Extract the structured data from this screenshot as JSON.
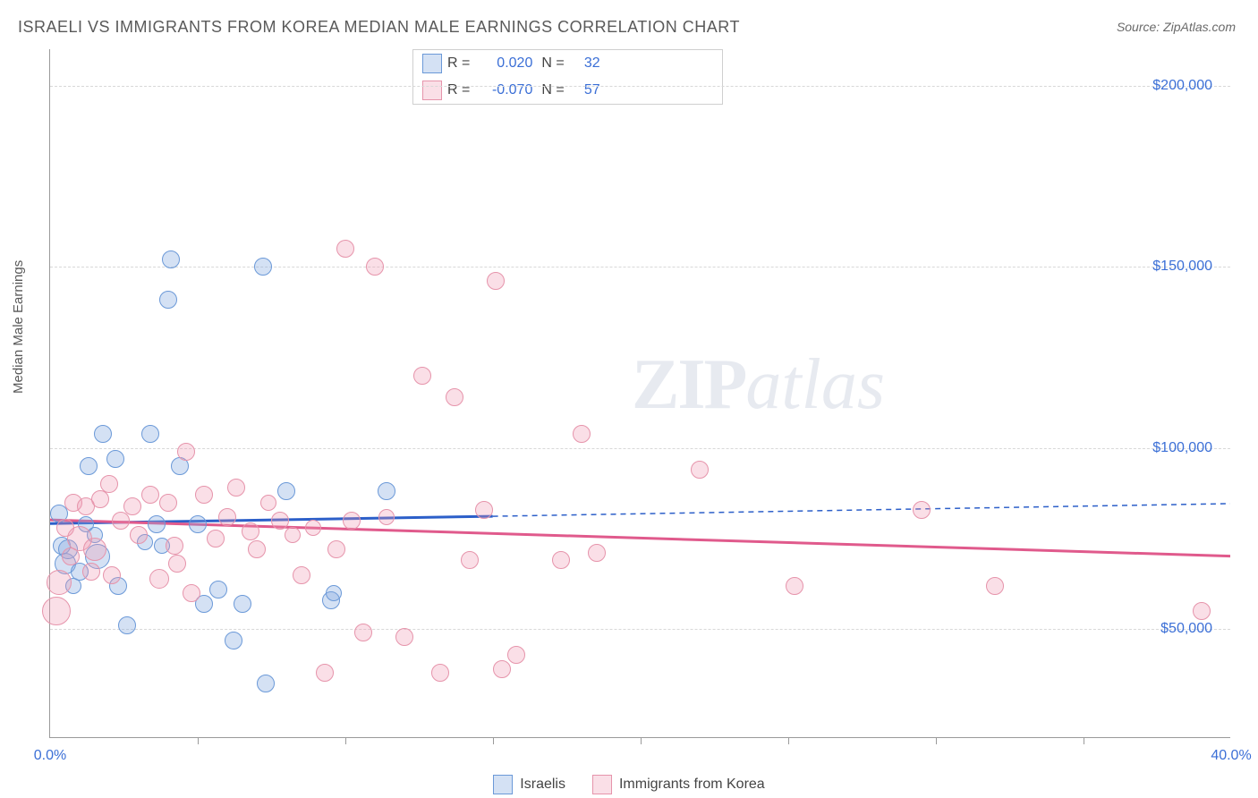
{
  "title": "ISRAELI VS IMMIGRANTS FROM KOREA MEDIAN MALE EARNINGS CORRELATION CHART",
  "source": "Source: ZipAtlas.com",
  "y_axis_label": "Median Male Earnings",
  "watermark_a": "ZIP",
  "watermark_b": "atlas",
  "chart": {
    "type": "scatter",
    "xlim": [
      0,
      40
    ],
    "ylim": [
      20000,
      210000
    ],
    "x_ticks_minor": [
      5,
      10,
      15,
      20,
      25,
      30,
      35
    ],
    "x_tick_labels": [
      {
        "x": 0,
        "label": "0.0%"
      },
      {
        "x": 40,
        "label": "40.0%"
      }
    ],
    "y_grid": [
      {
        "y": 50000,
        "label": "$50,000"
      },
      {
        "y": 100000,
        "label": "$100,000"
      },
      {
        "y": 150000,
        "label": "$150,000"
      },
      {
        "y": 200000,
        "label": "$200,000"
      }
    ],
    "background_color": "#ffffff",
    "grid_color": "#d8d8d8",
    "axis_color": "#9a9a9a",
    "tick_label_color": "#3b6fd6"
  },
  "series": [
    {
      "key": "israelis",
      "label": "Israelis",
      "fill": "rgba(132,170,224,0.35)",
      "stroke": "#6b99d8",
      "trend_color": "#2c5fc9",
      "R": "0.020",
      "N": "32",
      "trend": {
        "x1": 0,
        "y1": 79000,
        "x2_solid": 15,
        "y2_solid": 81000,
        "x2": 40,
        "y2": 84500
      },
      "points": [
        {
          "x": 0.3,
          "y": 82000,
          "r": 10
        },
        {
          "x": 0.4,
          "y": 73000,
          "r": 10
        },
        {
          "x": 0.5,
          "y": 68000,
          "r": 12
        },
        {
          "x": 0.6,
          "y": 72000,
          "r": 11
        },
        {
          "x": 0.8,
          "y": 62000,
          "r": 9
        },
        {
          "x": 1.0,
          "y": 66000,
          "r": 10
        },
        {
          "x": 1.2,
          "y": 79000,
          "r": 9
        },
        {
          "x": 1.3,
          "y": 95000,
          "r": 10
        },
        {
          "x": 1.5,
          "y": 76000,
          "r": 9
        },
        {
          "x": 1.6,
          "y": 70000,
          "r": 14
        },
        {
          "x": 1.8,
          "y": 104000,
          "r": 10
        },
        {
          "x": 2.2,
          "y": 97000,
          "r": 10
        },
        {
          "x": 2.3,
          "y": 62000,
          "r": 10
        },
        {
          "x": 2.6,
          "y": 51000,
          "r": 10
        },
        {
          "x": 3.2,
          "y": 74000,
          "r": 9
        },
        {
          "x": 3.4,
          "y": 104000,
          "r": 10
        },
        {
          "x": 3.6,
          "y": 79000,
          "r": 10
        },
        {
          "x": 3.8,
          "y": 73000,
          "r": 9
        },
        {
          "x": 4.0,
          "y": 141000,
          "r": 10
        },
        {
          "x": 4.1,
          "y": 152000,
          "r": 10
        },
        {
          "x": 4.4,
          "y": 95000,
          "r": 10
        },
        {
          "x": 5.0,
          "y": 79000,
          "r": 10
        },
        {
          "x": 5.2,
          "y": 57000,
          "r": 10
        },
        {
          "x": 5.7,
          "y": 61000,
          "r": 10
        },
        {
          "x": 6.2,
          "y": 47000,
          "r": 10
        },
        {
          "x": 6.5,
          "y": 57000,
          "r": 10
        },
        {
          "x": 7.2,
          "y": 150000,
          "r": 10
        },
        {
          "x": 7.3,
          "y": 35000,
          "r": 10
        },
        {
          "x": 8.0,
          "y": 88000,
          "r": 10
        },
        {
          "x": 9.5,
          "y": 58000,
          "r": 10
        },
        {
          "x": 9.6,
          "y": 60000,
          "r": 9
        },
        {
          "x": 11.4,
          "y": 88000,
          "r": 10
        }
      ]
    },
    {
      "key": "korea",
      "label": "Immigrants from Korea",
      "fill": "rgba(240,150,175,0.30)",
      "stroke": "#e694ab",
      "trend_color": "#e05a8c",
      "R": "-0.070",
      "N": "57",
      "trend": {
        "x1": 0,
        "y1": 80000,
        "x2_solid": 40,
        "y2_solid": 70000,
        "x2": 40,
        "y2": 70000
      },
      "points": [
        {
          "x": 0.2,
          "y": 55000,
          "r": 16
        },
        {
          "x": 0.3,
          "y": 63000,
          "r": 14
        },
        {
          "x": 0.5,
          "y": 78000,
          "r": 10
        },
        {
          "x": 0.7,
          "y": 70000,
          "r": 10
        },
        {
          "x": 0.8,
          "y": 85000,
          "r": 10
        },
        {
          "x": 1.0,
          "y": 75000,
          "r": 14
        },
        {
          "x": 1.2,
          "y": 84000,
          "r": 10
        },
        {
          "x": 1.4,
          "y": 66000,
          "r": 10
        },
        {
          "x": 1.5,
          "y": 72000,
          "r": 13
        },
        {
          "x": 1.7,
          "y": 86000,
          "r": 10
        },
        {
          "x": 2.0,
          "y": 90000,
          "r": 10
        },
        {
          "x": 2.1,
          "y": 65000,
          "r": 10
        },
        {
          "x": 2.4,
          "y": 80000,
          "r": 10
        },
        {
          "x": 2.8,
          "y": 84000,
          "r": 10
        },
        {
          "x": 3.0,
          "y": 76000,
          "r": 10
        },
        {
          "x": 3.4,
          "y": 87000,
          "r": 10
        },
        {
          "x": 3.7,
          "y": 64000,
          "r": 11
        },
        {
          "x": 4.0,
          "y": 85000,
          "r": 10
        },
        {
          "x": 4.2,
          "y": 73000,
          "r": 10
        },
        {
          "x": 4.3,
          "y": 68000,
          "r": 10
        },
        {
          "x": 4.6,
          "y": 99000,
          "r": 10
        },
        {
          "x": 4.8,
          "y": 60000,
          "r": 10
        },
        {
          "x": 5.2,
          "y": 87000,
          "r": 10
        },
        {
          "x": 5.6,
          "y": 75000,
          "r": 10
        },
        {
          "x": 6.0,
          "y": 81000,
          "r": 10
        },
        {
          "x": 6.3,
          "y": 89000,
          "r": 10
        },
        {
          "x": 6.8,
          "y": 77000,
          "r": 10
        },
        {
          "x": 7.0,
          "y": 72000,
          "r": 10
        },
        {
          "x": 7.4,
          "y": 85000,
          "r": 9
        },
        {
          "x": 7.8,
          "y": 80000,
          "r": 10
        },
        {
          "x": 8.2,
          "y": 76000,
          "r": 9
        },
        {
          "x": 8.5,
          "y": 65000,
          "r": 10
        },
        {
          "x": 8.9,
          "y": 78000,
          "r": 9
        },
        {
          "x": 9.3,
          "y": 38000,
          "r": 10
        },
        {
          "x": 9.7,
          "y": 72000,
          "r": 10
        },
        {
          "x": 10.0,
          "y": 155000,
          "r": 10
        },
        {
          "x": 10.2,
          "y": 80000,
          "r": 10
        },
        {
          "x": 10.6,
          "y": 49000,
          "r": 10
        },
        {
          "x": 11.0,
          "y": 150000,
          "r": 10
        },
        {
          "x": 11.4,
          "y": 81000,
          "r": 9
        },
        {
          "x": 12.0,
          "y": 48000,
          "r": 10
        },
        {
          "x": 12.6,
          "y": 120000,
          "r": 10
        },
        {
          "x": 13.2,
          "y": 38000,
          "r": 10
        },
        {
          "x": 13.7,
          "y": 114000,
          "r": 10
        },
        {
          "x": 14.2,
          "y": 69000,
          "r": 10
        },
        {
          "x": 14.7,
          "y": 83000,
          "r": 10
        },
        {
          "x": 15.1,
          "y": 146000,
          "r": 10
        },
        {
          "x": 15.3,
          "y": 39000,
          "r": 10
        },
        {
          "x": 15.8,
          "y": 43000,
          "r": 10
        },
        {
          "x": 17.3,
          "y": 69000,
          "r": 10
        },
        {
          "x": 18.0,
          "y": 104000,
          "r": 10
        },
        {
          "x": 18.5,
          "y": 71000,
          "r": 10
        },
        {
          "x": 22.0,
          "y": 94000,
          "r": 10
        },
        {
          "x": 25.2,
          "y": 62000,
          "r": 10
        },
        {
          "x": 29.5,
          "y": 83000,
          "r": 10
        },
        {
          "x": 32.0,
          "y": 62000,
          "r": 10
        },
        {
          "x": 39.0,
          "y": 55000,
          "r": 10
        }
      ]
    }
  ],
  "stats_labels": {
    "R": "R =",
    "N": "N ="
  },
  "legend": {
    "israelis": "Israelis",
    "korea": "Immigrants from Korea"
  }
}
